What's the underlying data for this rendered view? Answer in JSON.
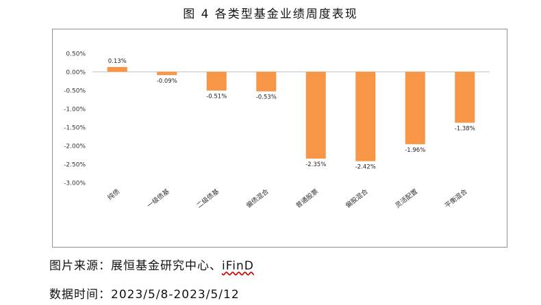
{
  "figure": {
    "title": "图 4 各类型基金业绩周度表现"
  },
  "footer": {
    "source_label": "图片来源：",
    "source_text": "展恒基金研究中心、",
    "source_brand": "iFinD",
    "date_label": "数据时间：",
    "date_text": "2023/5/8-2023/5/12"
  },
  "chart_data": {
    "type": "bar",
    "title": "",
    "xlabel": "",
    "ylabel": "",
    "categories": [
      "纯债",
      "一级债基",
      "二级债基",
      "偏债混合",
      "普通股票",
      "偏股混合",
      "灵活配置",
      "平衡混合"
    ],
    "values": [
      0.13,
      -0.09,
      -0.51,
      -0.53,
      -2.35,
      -2.42,
      -1.96,
      -1.38
    ],
    "value_labels": [
      "0.13%",
      "-0.09%",
      "-0.51%",
      "-0.53%",
      "-2.35%",
      "-2.42%",
      "-1.96%",
      "-1.38%"
    ],
    "ylim": [
      -3.0,
      0.5
    ],
    "yticks": [
      0.5,
      0.0,
      -0.5,
      -1.0,
      -1.5,
      -2.0,
      -2.5,
      -3.0
    ],
    "ytick_labels": [
      "0.50%",
      "0.00%",
      "-0.50%",
      "-1.00%",
      "-1.50%",
      "-2.00%",
      "-2.50%",
      "-3.00%"
    ],
    "grid": false,
    "legend": "none",
    "bar_color": "#f79646",
    "axis_color": "#bfbfbf"
  }
}
